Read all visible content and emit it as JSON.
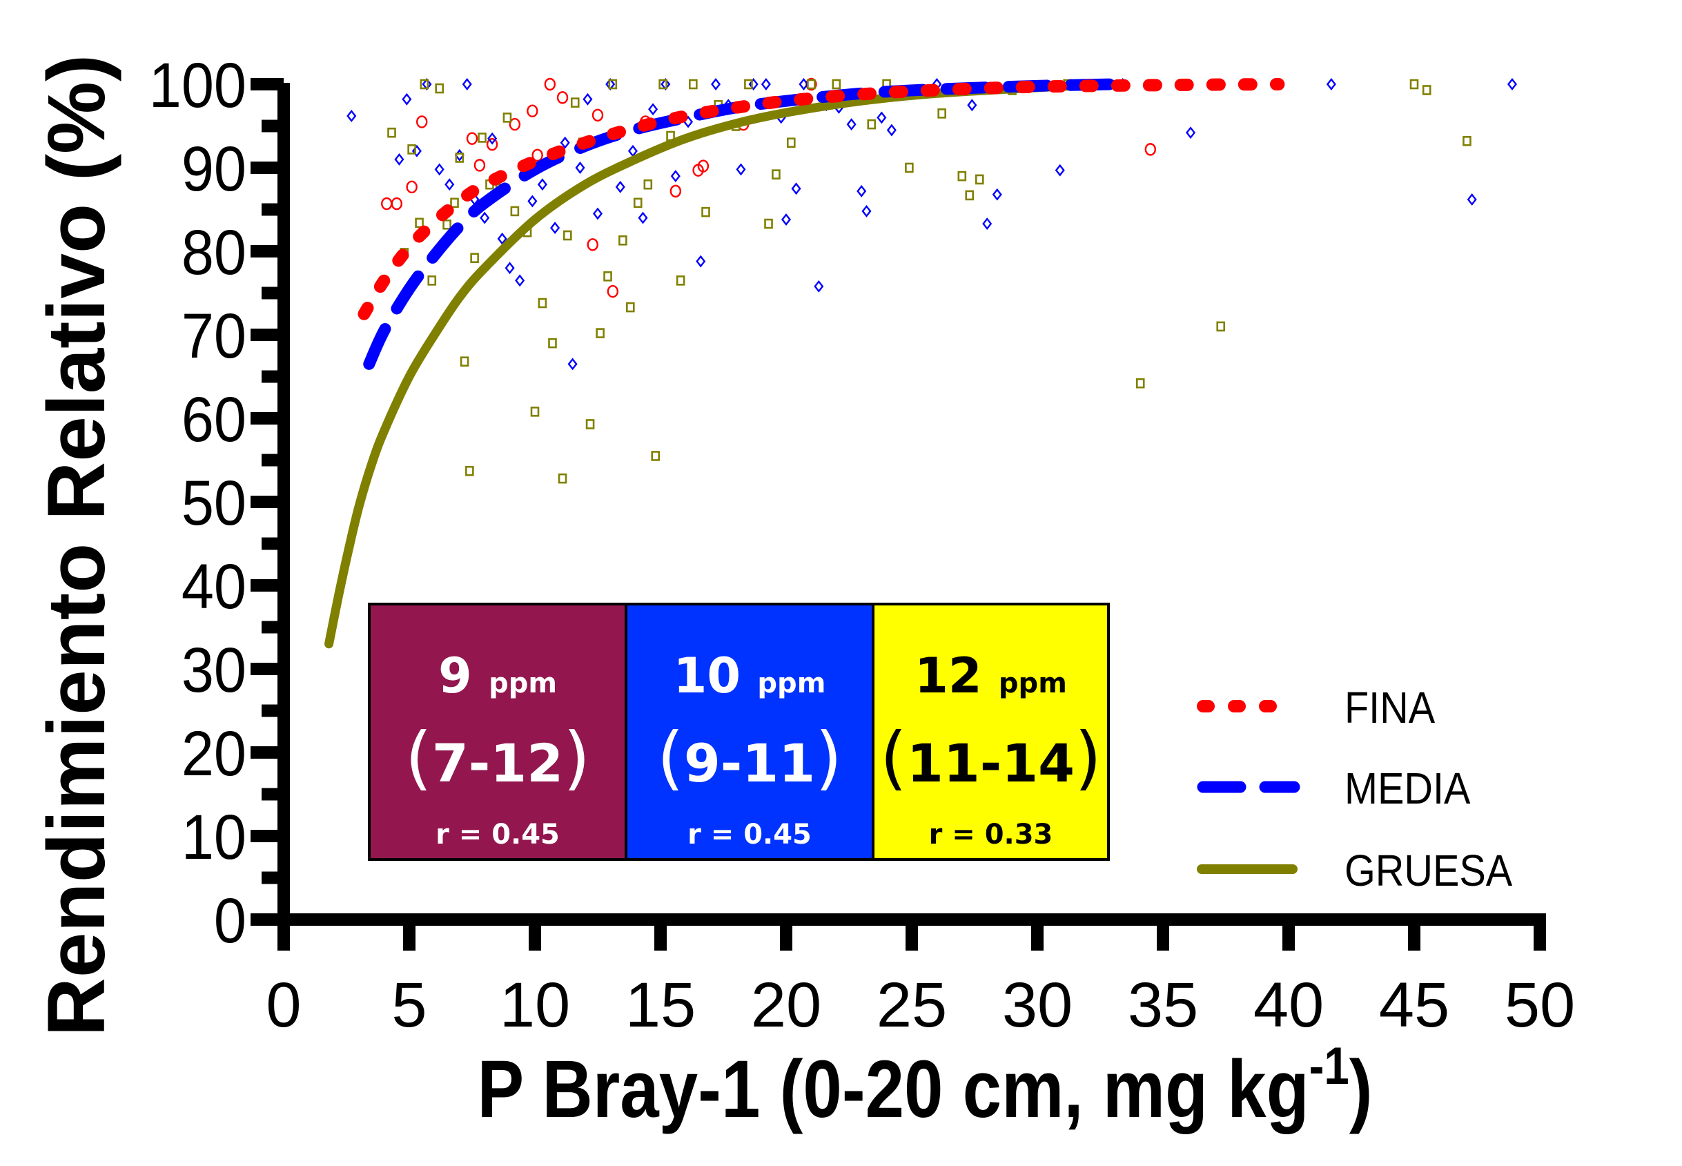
{
  "chart_data": {
    "type": "scatter",
    "title": "",
    "xlabel": "P Bray-1 (0-20 cm, mg kg",
    "xlabel_superscript": "-1",
    "xlabel_suffix": ")",
    "ylabel": "Rendimiento Relativo (%)",
    "xlim": [
      0,
      50
    ],
    "ylim": [
      0,
      100
    ],
    "x_ticks": [
      0,
      5,
      10,
      15,
      20,
      25,
      30,
      35,
      40,
      45,
      50
    ],
    "y_ticks": [
      0,
      10,
      20,
      30,
      40,
      50,
      60,
      70,
      80,
      90,
      100
    ],
    "y_minor_step": 5,
    "grid": false,
    "legend_position": "bottom-right",
    "series": [
      {
        "name": "FINA",
        "color": "#ff0000",
        "marker": "circle",
        "line_style": "dotted",
        "fit": [
          [
            3.2,
            72.5
          ],
          [
            4,
            76.5
          ],
          [
            5,
            80.5
          ],
          [
            6,
            83.5
          ],
          [
            7,
            86
          ],
          [
            8,
            88
          ],
          [
            10,
            90.8
          ],
          [
            12,
            93
          ],
          [
            14,
            94.8
          ],
          [
            16,
            96.2
          ],
          [
            18,
            97.2
          ],
          [
            20,
            98
          ],
          [
            23,
            98.8
          ],
          [
            26,
            99.3
          ],
          [
            30,
            99.7
          ],
          [
            35,
            99.9
          ],
          [
            39.6,
            100
          ]
        ],
        "points": [
          [
            4.1,
            85.7
          ],
          [
            4.5,
            85.7
          ],
          [
            5.1,
            87.7
          ],
          [
            5.5,
            95.5
          ],
          [
            7.5,
            93.5
          ],
          [
            7.8,
            90.3
          ],
          [
            8.3,
            92.8
          ],
          [
            9.9,
            96.8
          ],
          [
            10.1,
            91.5
          ],
          [
            10.6,
            100
          ],
          [
            11.1,
            98.4
          ],
          [
            12.5,
            96.3
          ],
          [
            13.1,
            75.2
          ],
          [
            14.4,
            95.5
          ],
          [
            15.6,
            87.2
          ],
          [
            16.5,
            89.7
          ],
          [
            16.7,
            90.2
          ],
          [
            18.3,
            95.2
          ],
          [
            12.3,
            80.8
          ],
          [
            34.5,
            92.2
          ],
          [
            21,
            100
          ],
          [
            9.2,
            95.2
          ]
        ]
      },
      {
        "name": "MEDIA",
        "color": "#0000ff",
        "marker": "diamond",
        "line_style": "dashed",
        "fit": [
          [
            3.4,
            66.5
          ],
          [
            4,
            70.5
          ],
          [
            5,
            75.5
          ],
          [
            6,
            79.5
          ],
          [
            7,
            83
          ],
          [
            8,
            85.8
          ],
          [
            10,
            89.8
          ],
          [
            12,
            92.6
          ],
          [
            14,
            94.6
          ],
          [
            16,
            96
          ],
          [
            18,
            97.2
          ],
          [
            20,
            98
          ],
          [
            23,
            98.9
          ],
          [
            26,
            99.4
          ],
          [
            30,
            99.8
          ],
          [
            33,
            100
          ]
        ],
        "points": [
          [
            2.7,
            96.2
          ],
          [
            4.6,
            91
          ],
          [
            4.9,
            98.2
          ],
          [
            5.3,
            92
          ],
          [
            5.7,
            100
          ],
          [
            6.2,
            89.8
          ],
          [
            6.6,
            88
          ],
          [
            7,
            91.5
          ],
          [
            7.3,
            100
          ],
          [
            7.6,
            86.2
          ],
          [
            8,
            84
          ],
          [
            8.3,
            93.5
          ],
          [
            8.7,
            81.5
          ],
          [
            9,
            78
          ],
          [
            9.4,
            76.5
          ],
          [
            9.9,
            86
          ],
          [
            10.3,
            88
          ],
          [
            10.8,
            82.8
          ],
          [
            11.2,
            93
          ],
          [
            11.5,
            66.5
          ],
          [
            11.8,
            90
          ],
          [
            12.1,
            98.2
          ],
          [
            12.5,
            84.5
          ],
          [
            13,
            100
          ],
          [
            13.4,
            87.7
          ],
          [
            13.9,
            92
          ],
          [
            14.3,
            84
          ],
          [
            14.7,
            97
          ],
          [
            15.2,
            100
          ],
          [
            15.6,
            89
          ],
          [
            16.1,
            95.5
          ],
          [
            16.6,
            78.8
          ],
          [
            17.2,
            100
          ],
          [
            17.7,
            97.5
          ],
          [
            18.2,
            89.8
          ],
          [
            18.7,
            100
          ],
          [
            19.2,
            100
          ],
          [
            19.8,
            96
          ],
          [
            20,
            83.8
          ],
          [
            20.4,
            87.5
          ],
          [
            20.7,
            100
          ],
          [
            21.3,
            75.8
          ],
          [
            21.6,
            97.5
          ],
          [
            22.1,
            97.2
          ],
          [
            22.6,
            95.2
          ],
          [
            23,
            87.2
          ],
          [
            23.2,
            84.8
          ],
          [
            23.8,
            96
          ],
          [
            24.2,
            94.5
          ],
          [
            25,
            99
          ],
          [
            26,
            100
          ],
          [
            27.4,
            97.5
          ],
          [
            28,
            83.3
          ],
          [
            28.4,
            86.8
          ],
          [
            30.9,
            89.7
          ],
          [
            33.4,
            100
          ],
          [
            36.1,
            94.2
          ],
          [
            41.7,
            100
          ],
          [
            47.3,
            86.2
          ],
          [
            48.9,
            100
          ]
        ]
      },
      {
        "name": "GRUESA",
        "color": "#808000",
        "marker": "square",
        "line_style": "solid",
        "fit": [
          [
            1.8,
            33
          ],
          [
            2.2,
            39
          ],
          [
            2.6,
            44.5
          ],
          [
            3,
            49.5
          ],
          [
            3.5,
            54.5
          ],
          [
            4,
            58.5
          ],
          [
            5,
            65
          ],
          [
            6,
            70
          ],
          [
            7,
            74.5
          ],
          [
            8,
            78
          ],
          [
            10,
            83.8
          ],
          [
            12,
            88
          ],
          [
            14,
            91
          ],
          [
            16,
            93.5
          ],
          [
            18,
            95.3
          ],
          [
            20,
            96.6
          ],
          [
            23,
            98
          ],
          [
            26,
            98.9
          ],
          [
            30,
            99.6
          ],
          [
            33,
            100
          ]
        ],
        "points": [
          [
            4.3,
            94.2
          ],
          [
            4.8,
            79.8
          ],
          [
            5.1,
            92.2
          ],
          [
            5.4,
            83.4
          ],
          [
            5.6,
            100
          ],
          [
            5.9,
            76.5
          ],
          [
            6.2,
            99.5
          ],
          [
            6.5,
            83.2
          ],
          [
            6.8,
            85.8
          ],
          [
            7,
            91.2
          ],
          [
            7.2,
            66.8
          ],
          [
            7.4,
            53.7
          ],
          [
            7.6,
            79.2
          ],
          [
            7.9,
            93.6
          ],
          [
            8.2,
            88
          ],
          [
            8.6,
            87.5
          ],
          [
            8.9,
            96
          ],
          [
            9.2,
            84.8
          ],
          [
            9.7,
            82.3
          ],
          [
            10,
            60.8
          ],
          [
            10.3,
            73.8
          ],
          [
            10.7,
            69
          ],
          [
            11.1,
            52.8
          ],
          [
            11.3,
            81.9
          ],
          [
            11.6,
            97.8
          ],
          [
            11.9,
            93
          ],
          [
            12.2,
            59.3
          ],
          [
            12.6,
            70.2
          ],
          [
            12.9,
            77
          ],
          [
            13.1,
            100
          ],
          [
            13.5,
            81.3
          ],
          [
            13.8,
            73.3
          ],
          [
            14.1,
            85.8
          ],
          [
            14.5,
            88
          ],
          [
            14.8,
            55.5
          ],
          [
            15.1,
            100
          ],
          [
            15.4,
            93.8
          ],
          [
            15.8,
            76.5
          ],
          [
            16.3,
            100
          ],
          [
            16.8,
            84.7
          ],
          [
            17.3,
            97.5
          ],
          [
            18,
            95
          ],
          [
            18.5,
            100
          ],
          [
            19.3,
            83.3
          ],
          [
            19.6,
            89.2
          ],
          [
            20.2,
            93
          ],
          [
            21,
            100
          ],
          [
            22,
            100
          ],
          [
            23.4,
            95.2
          ],
          [
            24,
            100
          ],
          [
            24.9,
            90
          ],
          [
            26.2,
            96.5
          ],
          [
            27,
            89
          ],
          [
            27.3,
            86.7
          ],
          [
            27.7,
            88.6
          ],
          [
            29,
            99.3
          ],
          [
            31.2,
            100
          ],
          [
            34.1,
            64.2
          ],
          [
            37.3,
            71
          ],
          [
            45,
            100
          ],
          [
            45.5,
            99.3
          ],
          [
            47.1,
            93.2
          ]
        ]
      }
    ],
    "annotations": [
      {
        "label": "FINA",
        "value": "9",
        "unit": "ppm",
        "range": "7-12",
        "r": "r = 0.45",
        "bg_color": "#93174e",
        "text_color": "#ffffff"
      },
      {
        "label": "MEDIA",
        "value": "10",
        "unit": "ppm",
        "range": "9-11",
        "r": "r = 0.45",
        "bg_color": "#0033ff",
        "text_color": "#ffffff"
      },
      {
        "label": "GRUESA",
        "value": "12",
        "unit": "ppm",
        "range": "11-14",
        "r": "r = 0.33",
        "bg_color": "#ffff00",
        "text_color": "#000000"
      }
    ]
  }
}
